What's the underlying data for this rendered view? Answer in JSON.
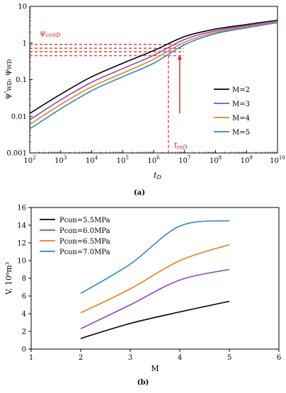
{
  "figure": {
    "caption_a": "(a)",
    "caption_b": "(b)"
  },
  "chart_data": [
    {
      "type": "line",
      "xscale": "log",
      "yscale": "log",
      "xlim": [
        100,
        10000000000
      ],
      "ylim": [
        0.001,
        10
      ],
      "xticks": [
        2,
        3,
        4,
        5,
        6,
        7,
        8,
        9,
        10
      ],
      "yticks": [
        "0.001",
        "0.01",
        "0.1",
        "1",
        "10"
      ],
      "xlabel": "t_D",
      "ylabel": "ψ'_WD, ψ_WD",
      "legend_position": "right",
      "grid": false,
      "annotations": {
        "psi_con": "ψconD",
        "t_in": "tinD",
        "t_in_value": 3000000,
        "psi_levels": [
          0.45,
          0.58,
          0.72,
          0.92
        ]
      },
      "series": [
        {
          "name": "M=2",
          "color": "#000000",
          "points": [
            [
              100,
              0.012
            ],
            [
              1000,
              0.04
            ],
            [
              10000,
              0.12
            ],
            [
              100000,
              0.28
            ],
            [
              1000000,
              0.62
            ],
            [
              10000000,
              1.5
            ],
            [
              100000000,
              2.4
            ],
            [
              1000000000,
              3.2
            ],
            [
              10000000000,
              4.2
            ]
          ]
        },
        {
          "name": "M=3",
          "color": "#8e44c4",
          "points": [
            [
              100,
              0.008
            ],
            [
              1000,
              0.028
            ],
            [
              10000,
              0.085
            ],
            [
              100000,
              0.2
            ],
            [
              1000000,
              0.46
            ],
            [
              10000000,
              1.25
            ],
            [
              100000000,
              2.15
            ],
            [
              1000000000,
              3.0
            ],
            [
              10000000000,
              4.0
            ]
          ]
        },
        {
          "name": "M=4",
          "color": "#f07d1a",
          "points": [
            [
              100,
              0.006
            ],
            [
              1000,
              0.021
            ],
            [
              10000,
              0.064
            ],
            [
              100000,
              0.15
            ],
            [
              1000000,
              0.36
            ],
            [
              10000000,
              1.05
            ],
            [
              100000000,
              1.95
            ],
            [
              1000000000,
              2.8
            ],
            [
              10000000000,
              3.8
            ]
          ]
        },
        {
          "name": "M=5",
          "color": "#2e86c8",
          "points": [
            [
              100,
              0.0045
            ],
            [
              1000,
              0.016
            ],
            [
              10000,
              0.05
            ],
            [
              100000,
              0.12
            ],
            [
              1000000,
              0.28
            ],
            [
              10000000,
              0.9
            ],
            [
              100000000,
              1.8
            ],
            [
              1000000000,
              2.6
            ],
            [
              10000000000,
              3.6
            ]
          ]
        }
      ]
    },
    {
      "type": "line",
      "xlim": [
        1,
        6
      ],
      "ylim": [
        0,
        16
      ],
      "xticks": [
        "1",
        "2",
        "3",
        "4",
        "5",
        "6"
      ],
      "yticks": [
        "0",
        "2",
        "4",
        "6",
        "8",
        "10",
        "12",
        "14",
        "16"
      ],
      "xlabel": "M",
      "ylabel": "V, 10⁶m³",
      "legend_position": "top-left",
      "grid": false,
      "series": [
        {
          "name": "Pcon=5.5MPa",
          "color": "#000000",
          "x": [
            2,
            3,
            4,
            5
          ],
          "y": [
            1.2,
            2.9,
            4.2,
            5.4
          ]
        },
        {
          "name": "Pcon=6.0MPa",
          "color": "#8e44c4",
          "x": [
            2,
            3,
            4,
            5
          ],
          "y": [
            2.3,
            5.0,
            7.8,
            9.0
          ]
        },
        {
          "name": "Pcon=6.5MPa",
          "color": "#f07d1a",
          "x": [
            2,
            3,
            4,
            5
          ],
          "y": [
            4.1,
            6.8,
            10.0,
            11.8
          ]
        },
        {
          "name": "Pcon=7.0MPa",
          "color": "#2e86c8",
          "x": [
            2,
            3,
            4,
            5
          ],
          "y": [
            6.3,
            9.6,
            13.9,
            14.5
          ]
        }
      ]
    }
  ]
}
